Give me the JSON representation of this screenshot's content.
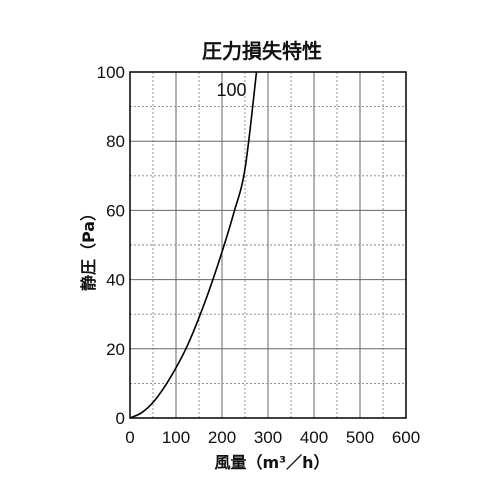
{
  "chart_data": {
    "type": "line",
    "title": "圧力損失特性",
    "xlabel": "風量（m³／h）",
    "ylabel": "静圧（Pa）",
    "xlim": [
      0,
      600
    ],
    "ylim": [
      0,
      100
    ],
    "x_major_ticks": [
      0,
      100,
      200,
      300,
      400,
      500,
      600
    ],
    "y_major_ticks": [
      0,
      20,
      40,
      60,
      80,
      100
    ],
    "x_minor_step": 50,
    "y_minor_step": 10,
    "grid": true,
    "series": [
      {
        "name": "100",
        "color": "#000000",
        "x": [
          0,
          25,
          50,
          75,
          100,
          125,
          150,
          175,
          200,
          225,
          250,
          275
        ],
        "y": [
          0,
          1.5,
          4.5,
          9,
          14.5,
          21,
          29,
          38,
          48,
          59,
          72,
          100
        ]
      }
    ]
  }
}
